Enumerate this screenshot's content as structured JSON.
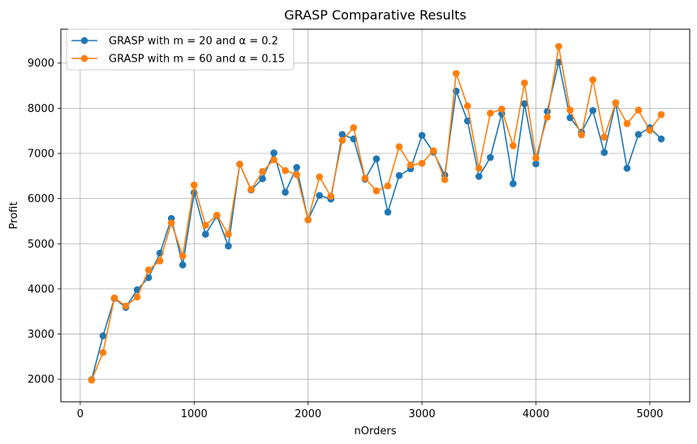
{
  "chart_data": {
    "type": "line",
    "title": "GRASP Comparative Results",
    "xlabel": "nOrders",
    "ylabel": "Profit",
    "xlim": [
      -170,
      5350
    ],
    "ylim": [
      1500,
      9750
    ],
    "xticks": [
      0,
      1000,
      2000,
      3000,
      4000,
      5000
    ],
    "yticks": [
      2000,
      3000,
      4000,
      5000,
      6000,
      7000,
      8000,
      9000
    ],
    "grid": true,
    "legend_position": "upper-left",
    "x": [
      100,
      200,
      300,
      400,
      500,
      600,
      700,
      800,
      900,
      1000,
      1100,
      1200,
      1300,
      1400,
      1500,
      1600,
      1700,
      1800,
      1900,
      2000,
      2100,
      2200,
      2300,
      2400,
      2500,
      2600,
      2700,
      2800,
      2900,
      3000,
      3100,
      3200,
      3300,
      3400,
      3500,
      3600,
      3700,
      3800,
      3900,
      4000,
      4100,
      4200,
      4300,
      4400,
      4500,
      4600,
      4700,
      4800,
      4900,
      5000,
      5100
    ],
    "series": [
      {
        "name": "GRASP with m = 20 and α = 0.2",
        "color": "#1f77b4",
        "values": [
          1990,
          2960,
          3790,
          3590,
          3980,
          4250,
          4790,
          5560,
          4530,
          6130,
          5210,
          5620,
          4950,
          6760,
          6190,
          6440,
          7010,
          6140,
          6690,
          5530,
          6070,
          5990,
          7420,
          7320,
          6430,
          6880,
          5700,
          6510,
          6660,
          7400,
          7030,
          6520,
          8380,
          7720,
          6490,
          6910,
          7880,
          6330,
          8100,
          6770,
          7930,
          9020,
          7790,
          7470,
          7950,
          7020,
          8120,
          6670,
          7420,
          7570,
          7320
        ]
      },
      {
        "name": "GRASP with m = 60 and α = 0.15",
        "color": "#ff7f0e",
        "values": [
          1980,
          2590,
          3800,
          3620,
          3820,
          4420,
          4620,
          5460,
          4730,
          6300,
          5410,
          5630,
          5210,
          6760,
          6200,
          6600,
          6860,
          6620,
          6530,
          5530,
          6480,
          6050,
          7290,
          7570,
          6450,
          6170,
          6280,
          7150,
          6740,
          6780,
          7060,
          6420,
          8770,
          8050,
          6670,
          7890,
          7980,
          7170,
          8560,
          6900,
          7800,
          9370,
          7960,
          7410,
          8630,
          7360,
          8120,
          7660,
          7960,
          7510,
          7860
        ]
      }
    ]
  }
}
